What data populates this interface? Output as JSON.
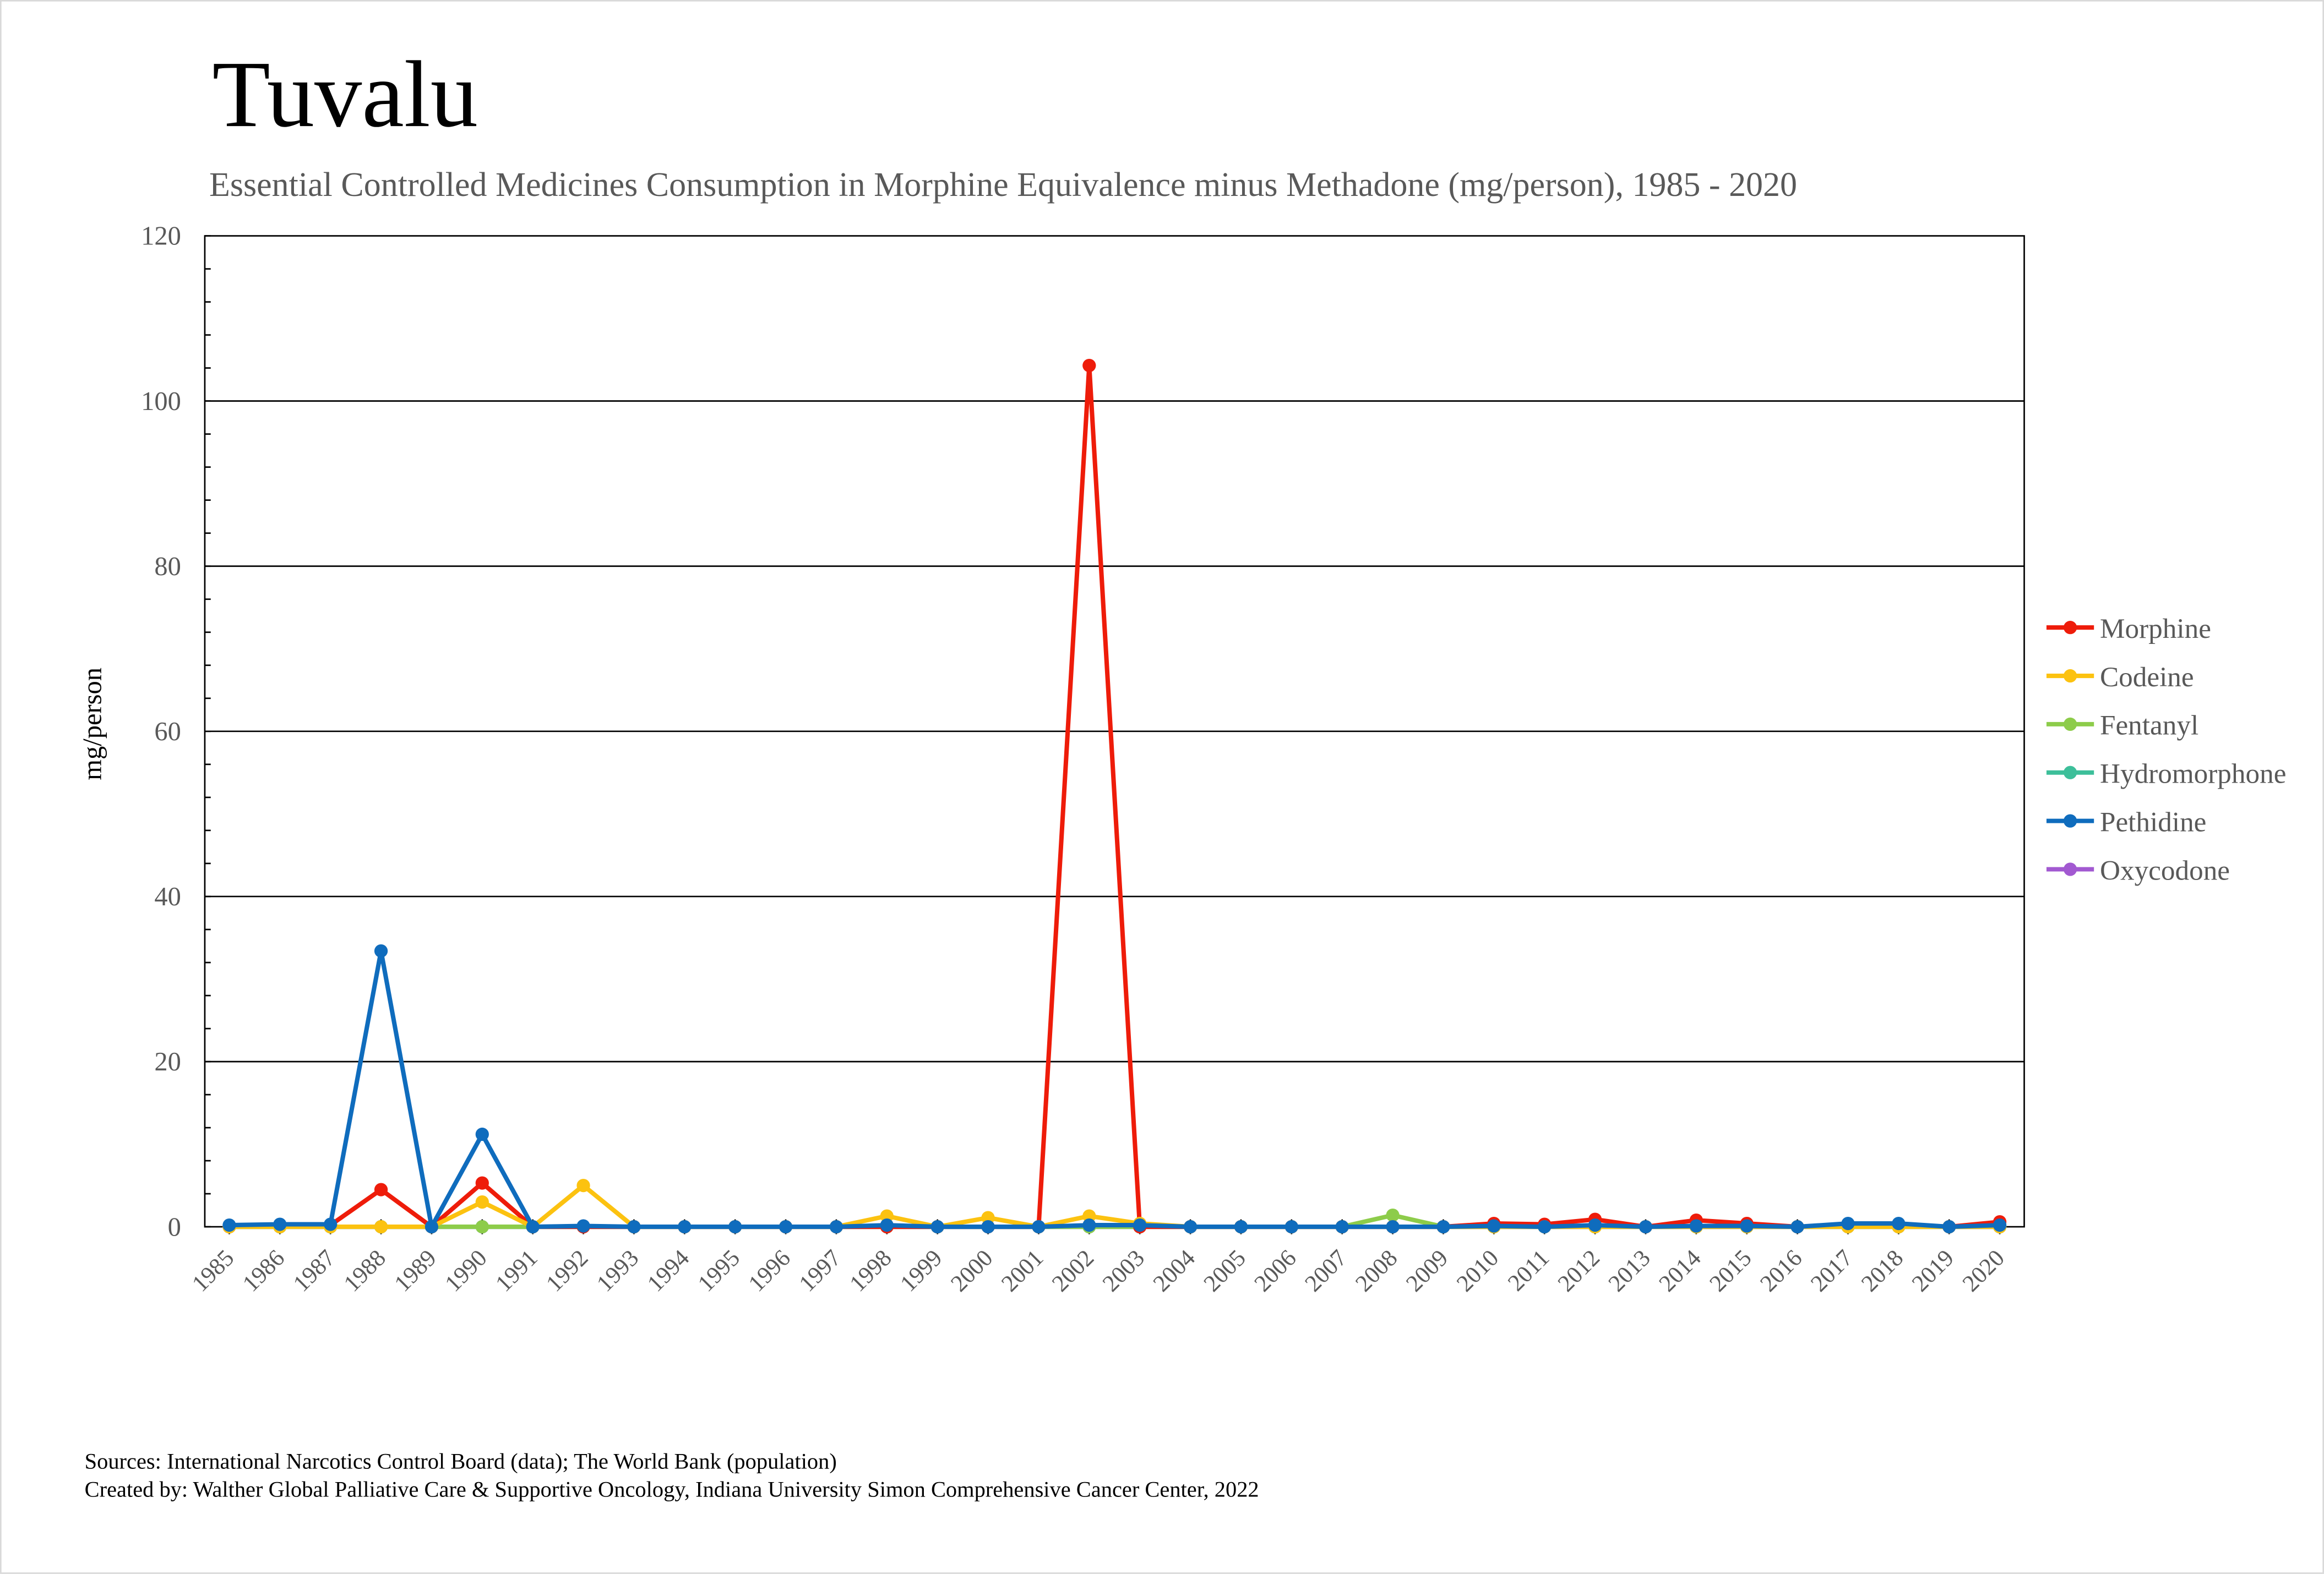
{
  "title": "Tuvalu",
  "subtitle": "Essential Controlled Medicines Consumption in Morphine Equivalence minus Methadone (mg/person), 1985 - 2020",
  "footer": {
    "sources": "Sources: International Narcotics Control Board (data); The World Bank (population)",
    "created_by": "Created by: Walther Global Palliative Care & Supportive Oncology, Indiana University Simon Comprehensive Cancer Center, 2022"
  },
  "chart_data": {
    "type": "line",
    "title": "Tuvalu",
    "subtitle": "Essential Controlled Medicines Consumption in Morphine Equivalence minus Methadone (mg/person), 1985 - 2020",
    "xlabel": "",
    "ylabel": "mg/person",
    "ylim": [
      0,
      120
    ],
    "yticks": [
      0,
      20,
      40,
      60,
      80,
      100,
      120
    ],
    "grid": "horizontal major gridlines",
    "legend": "right",
    "x": [
      "1985",
      "1986",
      "1987",
      "1988",
      "1989",
      "1990",
      "1991",
      "1992",
      "1993",
      "1994",
      "1995",
      "1996",
      "1997",
      "1998",
      "1999",
      "2000",
      "2001",
      "2002",
      "2003",
      "2004",
      "2005",
      "2006",
      "2007",
      "2008",
      "2009",
      "2010",
      "2011",
      "2012",
      "2013",
      "2014",
      "2015",
      "2016",
      "2017",
      "2018",
      "2019",
      "2020"
    ],
    "series": [
      {
        "name": "Morphine",
        "color": "#ee1c0a",
        "values": [
          0,
          0.1,
          0.2,
          4.5,
          0,
          5.3,
          0,
          0,
          0,
          0,
          0,
          0,
          0,
          0,
          0,
          0,
          0,
          104.3,
          0,
          0,
          0,
          0,
          0,
          0,
          0,
          0.4,
          0.3,
          0.9,
          0,
          0.8,
          0.4,
          0,
          0.2,
          0.3,
          0,
          0.6
        ]
      },
      {
        "name": "Codeine",
        "color": "#fcc210",
        "values": [
          0,
          0,
          0,
          0,
          0,
          3.0,
          0,
          5.0,
          0,
          0,
          0,
          0,
          0,
          1.3,
          0,
          1.1,
          0,
          1.3,
          0.4,
          0,
          0,
          0,
          0,
          0,
          0,
          0,
          0,
          0,
          0,
          0,
          0,
          0,
          0,
          0,
          0,
          0
        ]
      },
      {
        "name": "Fentanyl",
        "color": "#8dcc4a",
        "values": [
          0,
          0,
          0,
          0,
          0,
          0,
          0,
          0,
          0,
          0,
          0,
          0,
          0,
          0,
          0,
          0,
          0,
          0,
          0,
          0,
          0,
          0,
          0,
          1.4,
          0,
          0,
          0,
          0,
          0,
          0,
          0,
          0,
          0,
          0,
          0,
          0
        ]
      },
      {
        "name": "Hydromorphone",
        "color": "#3dbf9a",
        "values": [
          0,
          0,
          0,
          0,
          0,
          0,
          0,
          0,
          0,
          0,
          0,
          0,
          0,
          0,
          0,
          0,
          0,
          0,
          0,
          0,
          0,
          0,
          0,
          0,
          0,
          0,
          0,
          0,
          0,
          0,
          0,
          0,
          0,
          0,
          0,
          0
        ]
      },
      {
        "name": "Pethidine",
        "color": "#0f6cbd",
        "values": [
          0.2,
          0.3,
          0.3,
          33.4,
          0,
          11.2,
          0,
          0.1,
          0,
          0,
          0,
          0,
          0,
          0.2,
          0,
          0,
          0,
          0.2,
          0.2,
          0,
          0,
          0,
          0,
          0,
          0,
          0.1,
          0,
          0.2,
          0,
          0.1,
          0.1,
          0,
          0.4,
          0.4,
          0,
          0.2
        ]
      },
      {
        "name": "Oxycodone",
        "color": "#a259d1",
        "values": [
          0,
          0,
          0,
          0,
          0,
          0,
          0,
          0,
          0,
          0,
          0,
          0,
          0,
          0,
          0,
          0,
          0,
          0,
          0,
          0,
          0,
          0,
          0,
          0,
          0,
          0,
          0,
          0,
          0,
          0,
          0,
          0,
          0,
          0,
          0,
          0
        ]
      }
    ],
    "draw_order": [
      "Oxycodone",
      "Hydromorphone",
      "Fentanyl",
      "Morphine",
      "Codeine",
      "Pethidine"
    ]
  }
}
